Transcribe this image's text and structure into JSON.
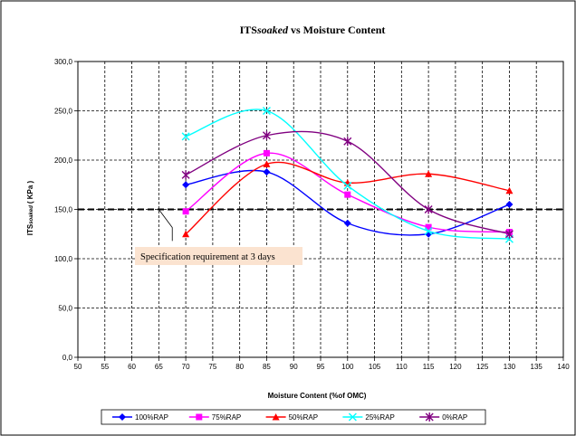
{
  "chart_data": {
    "type": "line",
    "title_main": "ITS",
    "title_sub": "soaked",
    "title_rest": " vs Moisture Content",
    "ylabel_main": "ITS",
    "ylabel_sub": "soaked",
    "ylabel_rest": "( KPa )",
    "xlabel": "Moisture Content (%of OMC)",
    "xlim": [
      50,
      140
    ],
    "ylim": [
      0,
      300
    ],
    "x_ticks": [
      "50",
      "55",
      "60",
      "65",
      "70",
      "75",
      "80",
      "85",
      "90",
      "95",
      "100",
      "105",
      "110",
      "115",
      "120",
      "125",
      "130",
      "135",
      "140"
    ],
    "y_ticks": [
      "0,0",
      "50,0",
      "100,0",
      "150,0",
      "200,0",
      "250,0",
      "300,0"
    ],
    "grid": true,
    "legend_position": "bottom",
    "x": [
      70,
      85,
      100,
      115,
      130
    ],
    "series": [
      {
        "name": "100%RAP",
        "color": "#0000ff",
        "marker": "diamond",
        "values": [
          175,
          188,
          136,
          125,
          155
        ]
      },
      {
        "name": "75%RAP",
        "color": "#ff00ff",
        "marker": "square",
        "values": [
          148,
          207,
          165,
          132,
          127
        ]
      },
      {
        "name": "50%RAP",
        "color": "#ff0000",
        "marker": "triangle",
        "values": [
          125,
          196,
          177,
          186,
          169
        ]
      },
      {
        "name": "25%RAP",
        "color": "#00ffff",
        "marker": "x",
        "values": [
          224,
          250,
          174,
          128,
          120
        ]
      },
      {
        "name": "0%RAP",
        "color": "#800080",
        "marker": "star",
        "values": [
          185,
          225,
          219,
          150,
          125
        ]
      }
    ],
    "specification_line": {
      "value": 150,
      "label": "Specification requirement  at 3 days"
    }
  }
}
